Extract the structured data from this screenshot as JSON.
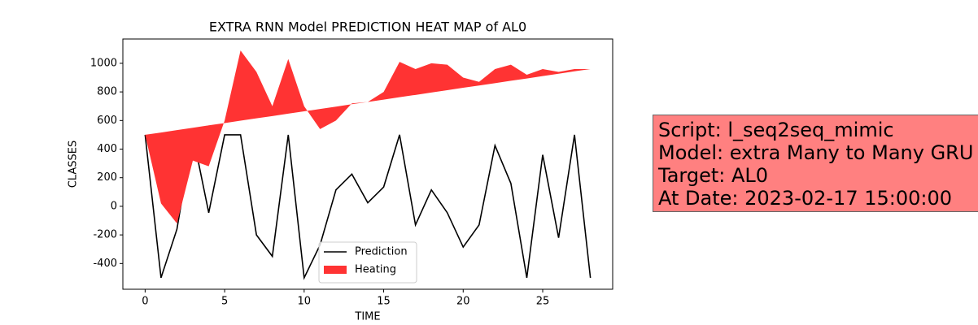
{
  "chart_data": {
    "type": "line",
    "title": "EXTRA RNN Model PREDICTION HEAT MAP of AL0",
    "x_label": "TIME",
    "y_label": "CLASSES",
    "x": [
      0,
      1,
      2,
      3,
      4,
      5,
      6,
      7,
      8,
      9,
      10,
      11,
      12,
      13,
      14,
      15,
      16,
      17,
      18,
      19,
      20,
      21,
      22,
      23,
      24,
      25,
      26,
      27,
      28
    ],
    "series": [
      {
        "name": "Prediction",
        "color": "#000000",
        "values": [
          500,
          -500,
          -160,
          500,
          -45,
          500,
          500,
          -200,
          -350,
          500,
          -500,
          -270,
          115,
          225,
          25,
          135,
          500,
          -130,
          115,
          -45,
          -285,
          -130,
          425,
          160,
          -500,
          360,
          -220,
          500,
          -500
        ]
      },
      {
        "name": "Heating",
        "color": "#ff3333",
        "values": [
          500,
          20,
          -120,
          320,
          280,
          600,
          1090,
          940,
          700,
          1030,
          700,
          540,
          600,
          720,
          730,
          800,
          1010,
          960,
          1000,
          990,
          900,
          870,
          960,
          990,
          920,
          960,
          940,
          960,
          960
        ],
        "base": [
          500,
          516,
          533,
          549,
          566,
          582,
          599,
          615,
          631,
          648,
          664,
          681,
          697,
          714,
          730,
          746,
          763,
          779,
          796,
          812,
          829,
          845,
          861,
          878,
          894,
          911,
          927,
          944,
          960
        ]
      }
    ],
    "xlim": [
      -1.4,
      29.4
    ],
    "xticks": [
      0,
      5,
      10,
      15,
      20,
      25
    ],
    "ylim": [
      -580,
      1170
    ],
    "yticks": [
      -400,
      -200,
      0,
      200,
      400,
      600,
      800,
      1000
    ],
    "legend": "lower center",
    "annotation": [
      "Script: l_seq2seq_mimic",
      "Model: extra Many to Many GRU",
      "Target: AL0",
      "At Date: 2023-02-17 15:00:00"
    ]
  }
}
